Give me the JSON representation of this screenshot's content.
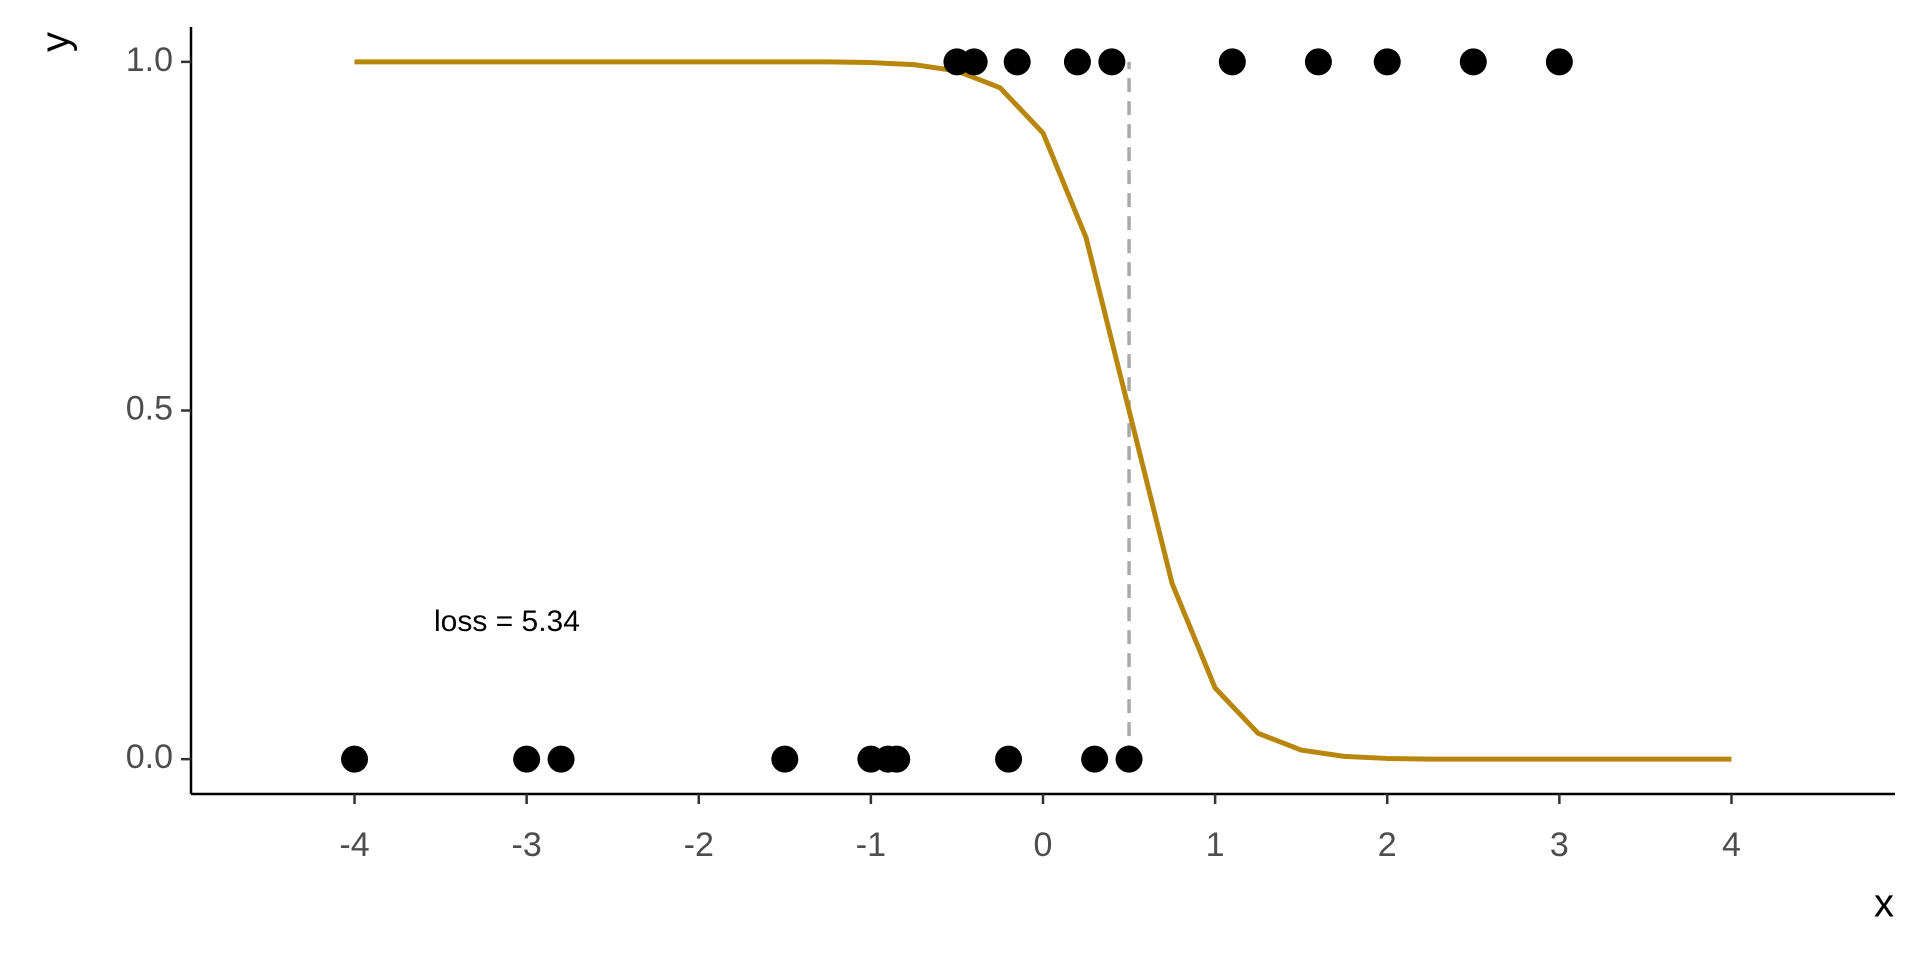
{
  "chart_data": {
    "type": "scatter",
    "x": [
      -0.5,
      -0.4,
      -0.15,
      0.2,
      0.4,
      1.1,
      1.6,
      2.0,
      2.5,
      3.0,
      -4,
      -3,
      -2.8,
      -1.5,
      -1.0,
      -0.9,
      -0.85,
      -0.2,
      0.3,
      0.5
    ],
    "y": [
      1,
      1,
      1,
      1,
      1,
      1,
      1,
      1,
      1,
      1,
      0,
      0,
      0,
      0,
      0,
      0,
      0,
      0,
      0,
      0
    ],
    "color": "#000000",
    "curve": {
      "type": "line",
      "color": "#b8860b",
      "x": [
        -4,
        -3.75,
        -3.5,
        -3.25,
        -3,
        -2.75,
        -2.5,
        -2.25,
        -2,
        -1.75,
        -1.5,
        -1.25,
        -1,
        -0.75,
        -0.5,
        -0.25,
        0,
        0.25,
        0.5,
        0.75,
        1,
        1.25,
        1.5,
        1.75,
        2,
        2.25,
        2.5,
        2.75,
        3,
        3.25,
        3.5,
        3.75,
        4
      ],
      "values": [
        1,
        1,
        1,
        1,
        1,
        1,
        1,
        1,
        1,
        1,
        1,
        1,
        0.999,
        0.996,
        0.987,
        0.963,
        0.898,
        0.748,
        0.5,
        0.252,
        0.102,
        0.037,
        0.013,
        0.004,
        0.001,
        0,
        0,
        0,
        0,
        0,
        0,
        0,
        0
      ]
    },
    "vline": {
      "x": 0.5,
      "color": "#a9a9a9"
    },
    "annotation": "loss = 5.34",
    "x_label": "x",
    "y_label": "y",
    "xlim": [
      -4.95,
      4.95
    ],
    "ylim": [
      -0.05,
      1.05
    ],
    "xticks": [
      -4,
      -3,
      -2,
      -1,
      0,
      1,
      2,
      3,
      4
    ],
    "yticks": [
      {
        "value": 0,
        "label": "0.0"
      },
      0.5,
      {
        "value": 1,
        "label": "1.0"
      }
    ],
    "grid": false
  }
}
